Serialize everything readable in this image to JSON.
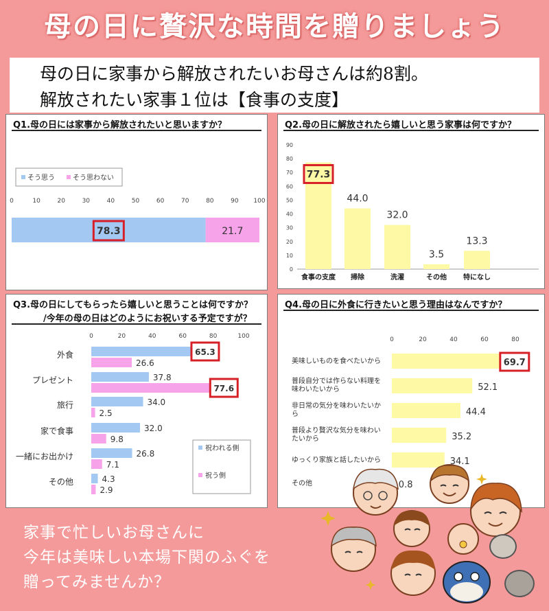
{
  "banner": {
    "title": "母の日に贅沢な時間を贈りましょう"
  },
  "lead": {
    "line1": "母の日に家事から解放されたいお母さんは約8割。",
    "line2": "解放されたい家事１位は【食事の支度】"
  },
  "footer": {
    "line1": "家事で忙しいお母さんに",
    "line2": "今年は美味しい本場下関のふぐを",
    "line3": "贈ってみませんか？"
  },
  "colors": {
    "blue": "#a3c8f2",
    "pink": "#f7a3e9",
    "yellow": "#fdf9a5",
    "highlight": "#d61f26"
  },
  "chart_data": [
    {
      "id": "q1",
      "type": "bar",
      "orientation": "horizontal",
      "stacked": true,
      "title": "Q1.母の日には家事から解放されたいと思いますか？",
      "ticks": [
        "0",
        "10",
        "20",
        "30",
        "40",
        "50",
        "60",
        "70",
        "80",
        "90",
        "100"
      ],
      "xlim": [
        0,
        100
      ],
      "series": [
        {
          "name": "そう思う",
          "values": [
            78.3
          ],
          "labels": [
            "78.3"
          ]
        },
        {
          "name": "そう思わない",
          "values": [
            21.7
          ],
          "labels": [
            "21.7"
          ]
        }
      ],
      "legend": "top-left",
      "highlight": "78.3"
    },
    {
      "id": "q2",
      "type": "bar",
      "orientation": "vertical",
      "title": "Q2.母の日に解放されたら嬉しいと思う家事は何ですか？",
      "categories": [
        "食事の支度",
        "掃除",
        "洗濯",
        "その他",
        "特になし"
      ],
      "values": [
        77.3,
        44.0,
        32.0,
        3.5,
        13.3
      ],
      "labels": [
        "77.3",
        "44.0",
        "32.0",
        "3.5",
        "13.3"
      ],
      "ticks": [
        "0",
        "10",
        "20",
        "30",
        "40",
        "50",
        "60",
        "70",
        "80",
        "90"
      ],
      "ylim": [
        0,
        90
      ],
      "highlight": "77.3"
    },
    {
      "id": "q3",
      "type": "bar",
      "orientation": "horizontal",
      "title": "Q3.母の日にしてもらったら嬉しいと思うことは何ですか？",
      "subtitle": "/今年の母の日はどのようにお祝いする予定ですが？",
      "categories": [
        "外食",
        "プレゼント",
        "旅行",
        "家で食事",
        "一緒にお出かけ",
        "その他"
      ],
      "ticks": [
        "0",
        "20",
        "40",
        "60",
        "80",
        "100"
      ],
      "xlim": [
        0,
        100
      ],
      "series": [
        {
          "name": "祝われる側",
          "values": [
            65.3,
            37.8,
            34.0,
            32.0,
            26.8,
            4.3
          ],
          "labels": [
            "65.3",
            "37.8",
            "34.0",
            "32.0",
            "26.8",
            "4.3"
          ]
        },
        {
          "name": "祝う側",
          "values": [
            26.6,
            77.6,
            2.5,
            9.8,
            7.1,
            2.9
          ],
          "labels": [
            "26.6",
            "77.6",
            "2.5",
            "9.8",
            "7.1",
            "2.9"
          ]
        }
      ],
      "legend": "right",
      "highlight": [
        "65.3",
        "77.6"
      ]
    },
    {
      "id": "q4",
      "type": "bar",
      "orientation": "horizontal",
      "title": "Q4.母の日に外食に行きたいと思う理由はなんですか？",
      "categories": [
        "美味しいものを食べたいから",
        "普段自分では作らない料理を味わいたいから",
        "非日常の気分を味わいたいから",
        "普段より贅沢な気分を味わいたいから",
        "ゆっくり家族と話したいから",
        "その他"
      ],
      "values": [
        69.7,
        52.1,
        44.4,
        35.2,
        34.1,
        0.8
      ],
      "labels": [
        "69.7",
        "52.1",
        "44.4",
        "35.2",
        "34.1",
        "0.8"
      ],
      "ticks": [
        "0",
        "20",
        "40",
        "60",
        "80"
      ],
      "xlim": [
        0,
        80
      ],
      "highlight": "69.7"
    }
  ]
}
